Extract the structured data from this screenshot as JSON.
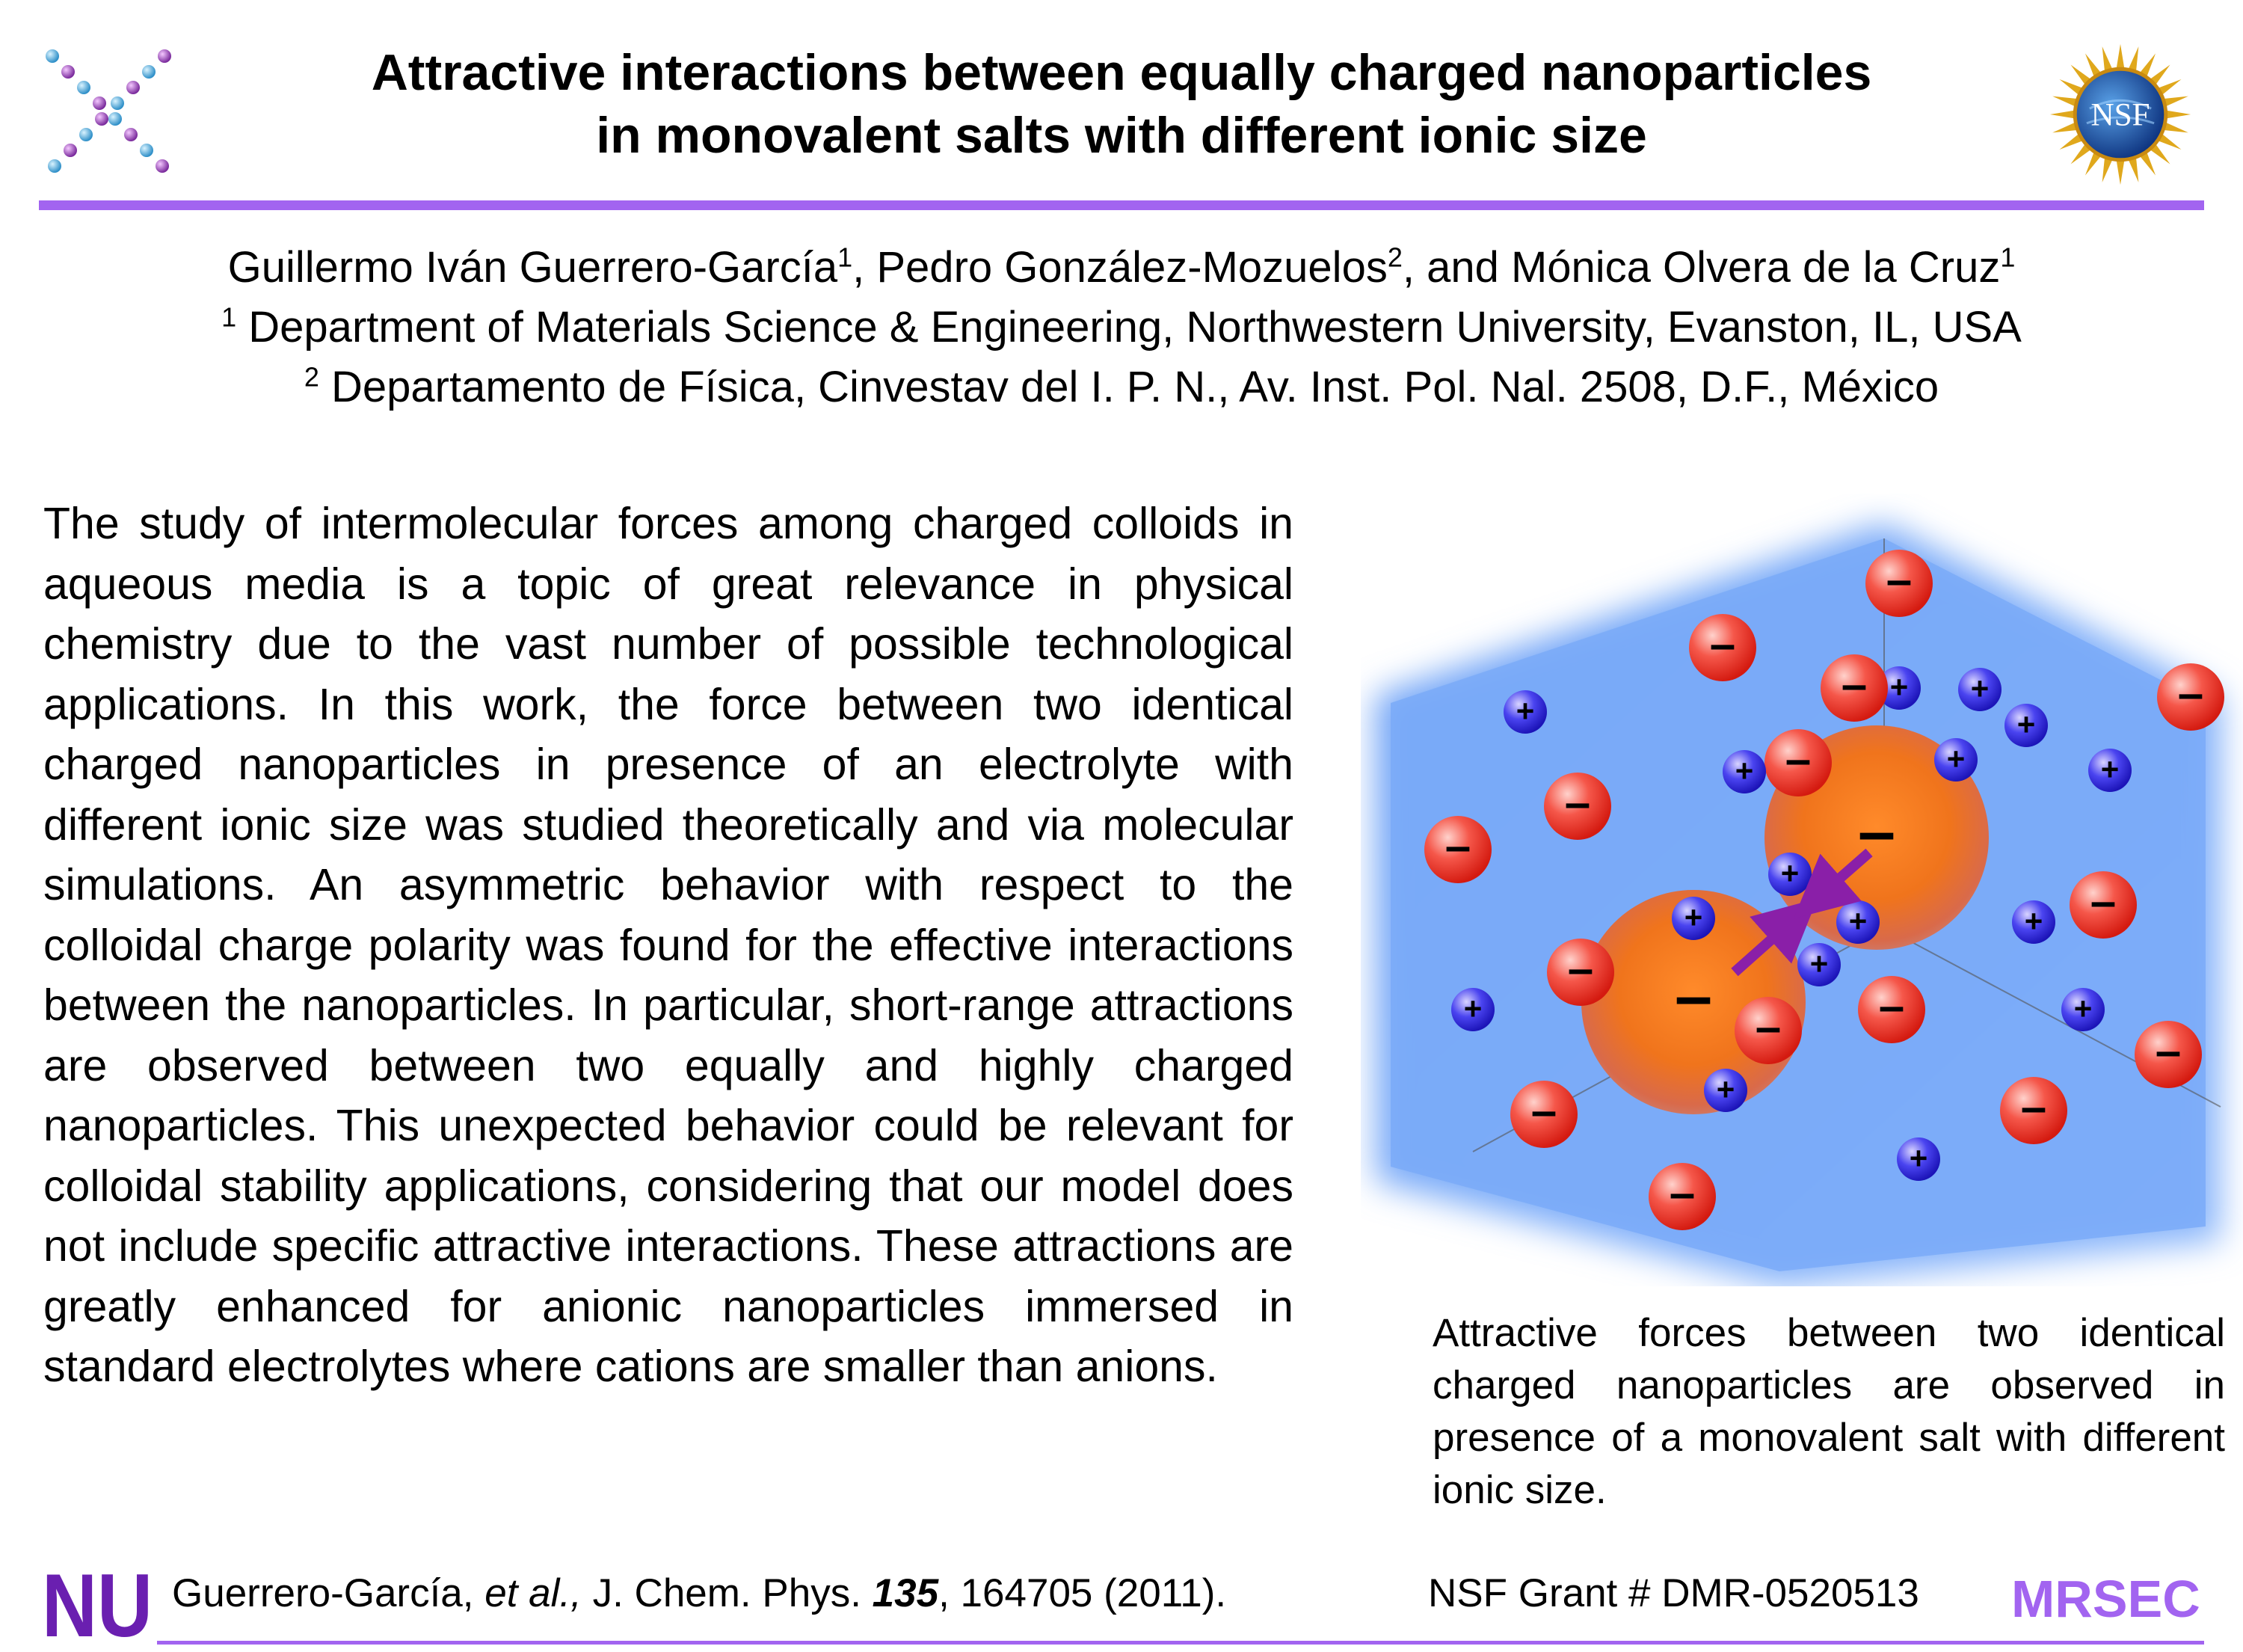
{
  "title": {
    "line1": "Attractive interactions between equally charged nanoparticles",
    "line2": "in monovalent salts with different ionic size"
  },
  "logos": {
    "left_icon": "nanoparticle-cross-logo",
    "nsf_text": "NSF",
    "nu_text": "NU",
    "accent_color": "#a264f0"
  },
  "authors": {
    "line1_a": "Guillermo Iván Guerrero-García",
    "line1_a_sup": "1",
    "line1_b": ", Pedro González-Mozuelos",
    "line1_b_sup": "2",
    "line1_c": ", and Mónica Olvera de la Cruz",
    "line1_c_sup": "1",
    "aff1_sup": "1",
    "aff1": " Department of Materials Science & Engineering, Northwestern University, Evanston, IL, USA",
    "aff2_sup": "2",
    "aff2": " Departamento de Física, Cinvestav del I. P. N., Av. Inst. Pol. Nal. 2508, D.F., México"
  },
  "abstract": "The study of intermolecular forces among charged colloids in aqueous media is a topic of great relevance in physical chemistry due to the vast number of possible technological applications. In this work, the force between two identical charged nanoparticles in presence of an electrolyte with different ionic size was studied theoretically and via molecular simulations. An asymmetric behavior with respect to the colloidal charge polarity was found for the effective interactions between the nanoparticles. In particular, short-range attractions are observed between two equally and highly charged nanoparticles. This unexpected behavior could be relevant for colloidal stability applications, considering that our model does not include specific attractive interactions. These attractions are greatly enhanced for anionic nanoparticles immersed in standard electrolytes where cations are smaller than anions.",
  "figure": {
    "anion_symbol": "–",
    "cation_symbol": "+",
    "nanoparticle_symbol": "–",
    "colors": {
      "box": "#7fb0fa",
      "anion": "#f03a2e",
      "cation": "#3a2ee0",
      "nanoparticle": "#f0751e",
      "arrow": "#8a1fa8"
    }
  },
  "caption": "Attractive forces between two identical charged nanoparticles are observed in presence of a monovalent salt with different ionic size.",
  "footer": {
    "cite_authors": "Guerrero-García, ",
    "cite_etal": "et al.,",
    "cite_journal": " J. Chem. Phys. ",
    "cite_volume": "135",
    "cite_rest": ", 164705 (2011).",
    "grant": "NSF Grant # DMR-0520513",
    "mrsec": "MRSEC"
  }
}
